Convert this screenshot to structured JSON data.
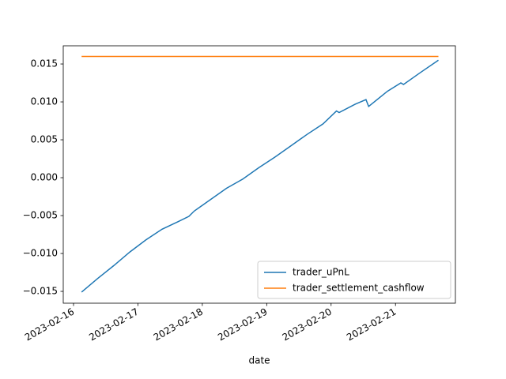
{
  "chart_data": {
    "type": "line",
    "x_label": "date",
    "x": [
      "2023-02-16T03:00",
      "2023-02-16T09:00",
      "2023-02-16T15:00",
      "2023-02-16T21:00",
      "2023-02-17T03:00",
      "2023-02-17T09:00",
      "2023-02-17T15:00",
      "2023-02-17T19:00",
      "2023-02-17T21:00",
      "2023-02-18T03:00",
      "2023-02-18T09:00",
      "2023-02-18T14:00",
      "2023-02-18T15:00",
      "2023-02-18T21:00",
      "2023-02-19T03:00",
      "2023-02-19T09:00",
      "2023-02-19T15:00",
      "2023-02-19T21:00",
      "2023-02-20T02:00",
      "2023-02-20T03:00",
      "2023-02-20T09:00",
      "2023-02-20T13:00",
      "2023-02-20T14:00",
      "2023-02-20T21:00",
      "2023-02-21T02:00",
      "2023-02-21T03:00",
      "2023-02-21T09:00",
      "2023-02-21T16:00"
    ],
    "series": [
      {
        "name": "trader_uPnL",
        "color": "#1f77b4",
        "values": [
          -0.0151,
          -0.0133,
          -0.0116,
          -0.0098,
          -0.0082,
          -0.0068,
          -0.0058,
          -0.0051,
          -0.0044,
          -0.0029,
          -0.0014,
          -0.0004,
          -0.0002,
          0.0013,
          0.0027,
          0.0042,
          0.0057,
          0.0071,
          0.0088,
          0.0086,
          0.0097,
          0.0103,
          0.0094,
          0.0114,
          0.0125,
          0.0123,
          0.0138,
          0.0155
        ]
      },
      {
        "name": "trader_settlement_cashflow",
        "color": "#ff7f0e",
        "values": [
          0.016,
          0.016,
          0.016,
          0.016,
          0.016,
          0.016,
          0.016,
          0.016,
          0.016,
          0.016,
          0.016,
          0.016,
          0.016,
          0.016,
          0.016,
          0.016,
          0.016,
          0.016,
          0.016,
          0.016,
          0.016,
          0.016,
          0.016,
          0.016,
          0.016,
          0.016,
          0.016,
          0.016
        ]
      }
    ],
    "xlim": [
      "2023-02-15T20:10",
      "2023-02-21T22:20"
    ],
    "xticks": [
      "2023-02-16",
      "2023-02-17",
      "2023-02-18",
      "2023-02-19",
      "2023-02-20",
      "2023-02-21"
    ],
    "ylim": [
      -0.01656,
      0.0174
    ],
    "yticks": [
      {
        "value": -0.015,
        "label": "−0.015"
      },
      {
        "value": -0.01,
        "label": "−0.010"
      },
      {
        "value": -0.005,
        "label": "−0.005"
      },
      {
        "value": 0,
        "label": "0.000"
      },
      {
        "value": 0.005,
        "label": "0.005"
      },
      {
        "value": 0.01,
        "label": "0.010"
      },
      {
        "value": 0.015,
        "label": "0.015"
      }
    ],
    "legend": "lower right"
  }
}
